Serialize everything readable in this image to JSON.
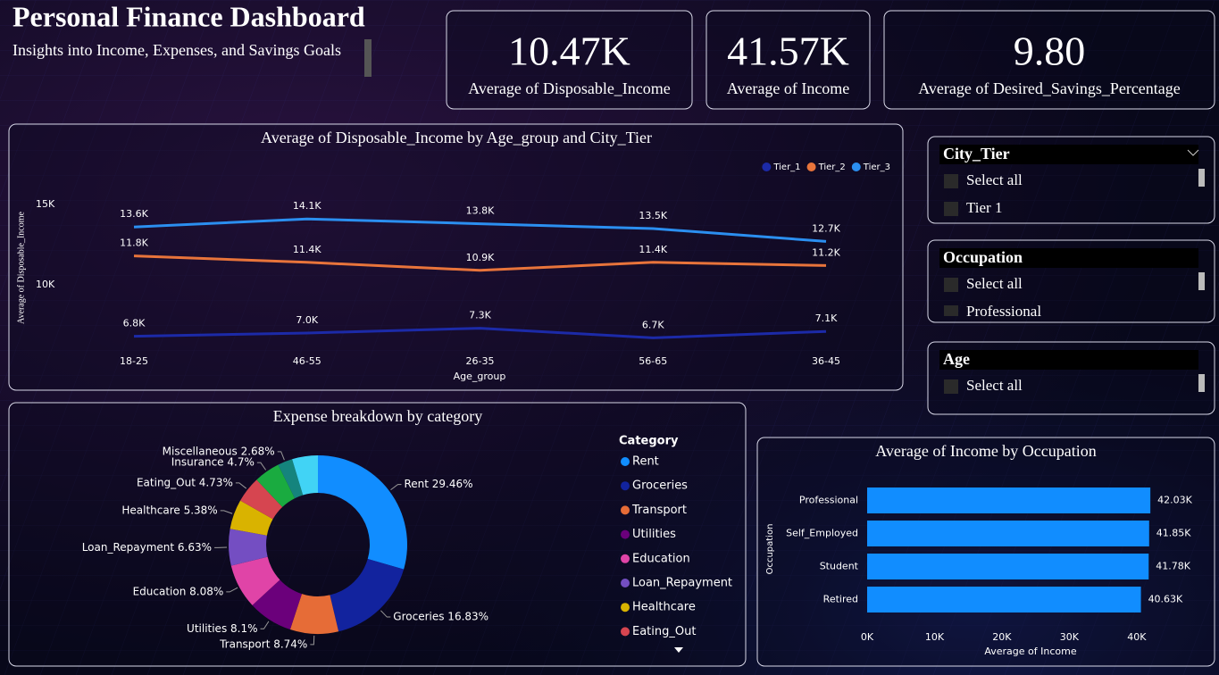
{
  "header": {
    "title": "Personal Finance Dashboard",
    "subtitle": "Insights into Income, Expenses, and Savings Goals"
  },
  "kpis": [
    {
      "value": "10.47K",
      "label": "Average of Disposable_Income"
    },
    {
      "value": "41.57K",
      "label": "Average of Income"
    },
    {
      "value": "9.80",
      "label": "Average of Desired_Savings_Percentage"
    }
  ],
  "slicers": [
    {
      "title": "City_Tier",
      "items": [
        "Select all",
        "Tier 1"
      ]
    },
    {
      "title": "Occupation",
      "items": [
        "Select all",
        "Professional"
      ]
    },
    {
      "title": "Age",
      "items": [
        "Select all"
      ]
    }
  ],
  "chart_data": [
    {
      "type": "line",
      "title": "Average of Disposable_Income by Age_group and City_Tier",
      "x_label": "Age_group",
      "y_label": "Average of Disposable_Income",
      "categories": [
        "18-25",
        "46-55",
        "26-35",
        "56-65",
        "36-45"
      ],
      "series": [
        {
          "name": "Tier_1",
          "color": "#1c2aa8",
          "values": [
            6800,
            7000,
            7300,
            6700,
            7100
          ],
          "value_labels": [
            "6.8K",
            "7.0K",
            "7.3K",
            "6.7K",
            "7.1K"
          ]
        },
        {
          "name": "Tier_2",
          "color": "#e8743b",
          "values": [
            11800,
            11400,
            10900,
            11400,
            11200
          ],
          "value_labels": [
            "11.8K",
            "11.4K",
            "10.9K",
            "11.4K",
            "11.2K"
          ]
        },
        {
          "name": "Tier_3",
          "color": "#2b8ff0",
          "values": [
            13600,
            14100,
            13800,
            13500,
            12700
          ],
          "value_labels": [
            "13.6K",
            "14.1K",
            "13.8K",
            "13.5K",
            "12.7K"
          ]
        }
      ],
      "ylim": [
        5500,
        16500
      ],
      "yticks": [
        {
          "value": 10000,
          "label": "10K"
        },
        {
          "value": 15000,
          "label": "15K"
        }
      ],
      "grid": false,
      "legend": "top-right"
    },
    {
      "type": "donut",
      "title": "Expense breakdown by category",
      "legend_title": "Category",
      "categories": [
        "Rent",
        "Groceries",
        "Transport",
        "Utilities",
        "Education",
        "Loan_Repayment",
        "Healthcare",
        "Eating_Out",
        "Insurance",
        "Miscellaneous",
        null
      ],
      "values": [
        29.46,
        16.83,
        8.74,
        8.1,
        8.08,
        6.63,
        5.38,
        4.73,
        4.7,
        2.68,
        4.67
      ],
      "value_labels": [
        "Rent 29.46%",
        "Groceries 16.83%",
        "Transport 8.74%",
        "Utilities 8.1%",
        "Education 8.08%",
        "Loan_Repayment 6.63%",
        "Healthcare 5.38%",
        "Eating_Out 4.73%",
        "Insurance 4.7%",
        "Miscellaneous 2.68%",
        null
      ],
      "colors": [
        "#118dff",
        "#12239e",
        "#e66c37",
        "#6b007b",
        "#e044a7",
        "#744ec2",
        "#d9b300",
        "#d64550",
        "#1aab40",
        "#15847d",
        "#41d3f5"
      ],
      "legend": "right"
    },
    {
      "type": "hbar",
      "title": "Average of Income by Occupation",
      "x_label": "Average of Income",
      "y_label": "Occupation",
      "categories": [
        "Professional",
        "Self_Employed",
        "Student",
        "Retired"
      ],
      "values": [
        42030,
        41850,
        41780,
        40630
      ],
      "value_labels": [
        "42.03K",
        "41.85K",
        "41.78K",
        "40.63K"
      ],
      "color": "#118dff",
      "xlim": [
        0,
        44000
      ],
      "xticks": [
        {
          "value": 0,
          "label": "0K"
        },
        {
          "value": 10000,
          "label": "10K"
        },
        {
          "value": 20000,
          "label": "20K"
        },
        {
          "value": 30000,
          "label": "30K"
        },
        {
          "value": 40000,
          "label": "40K"
        }
      ],
      "grid": false
    }
  ]
}
